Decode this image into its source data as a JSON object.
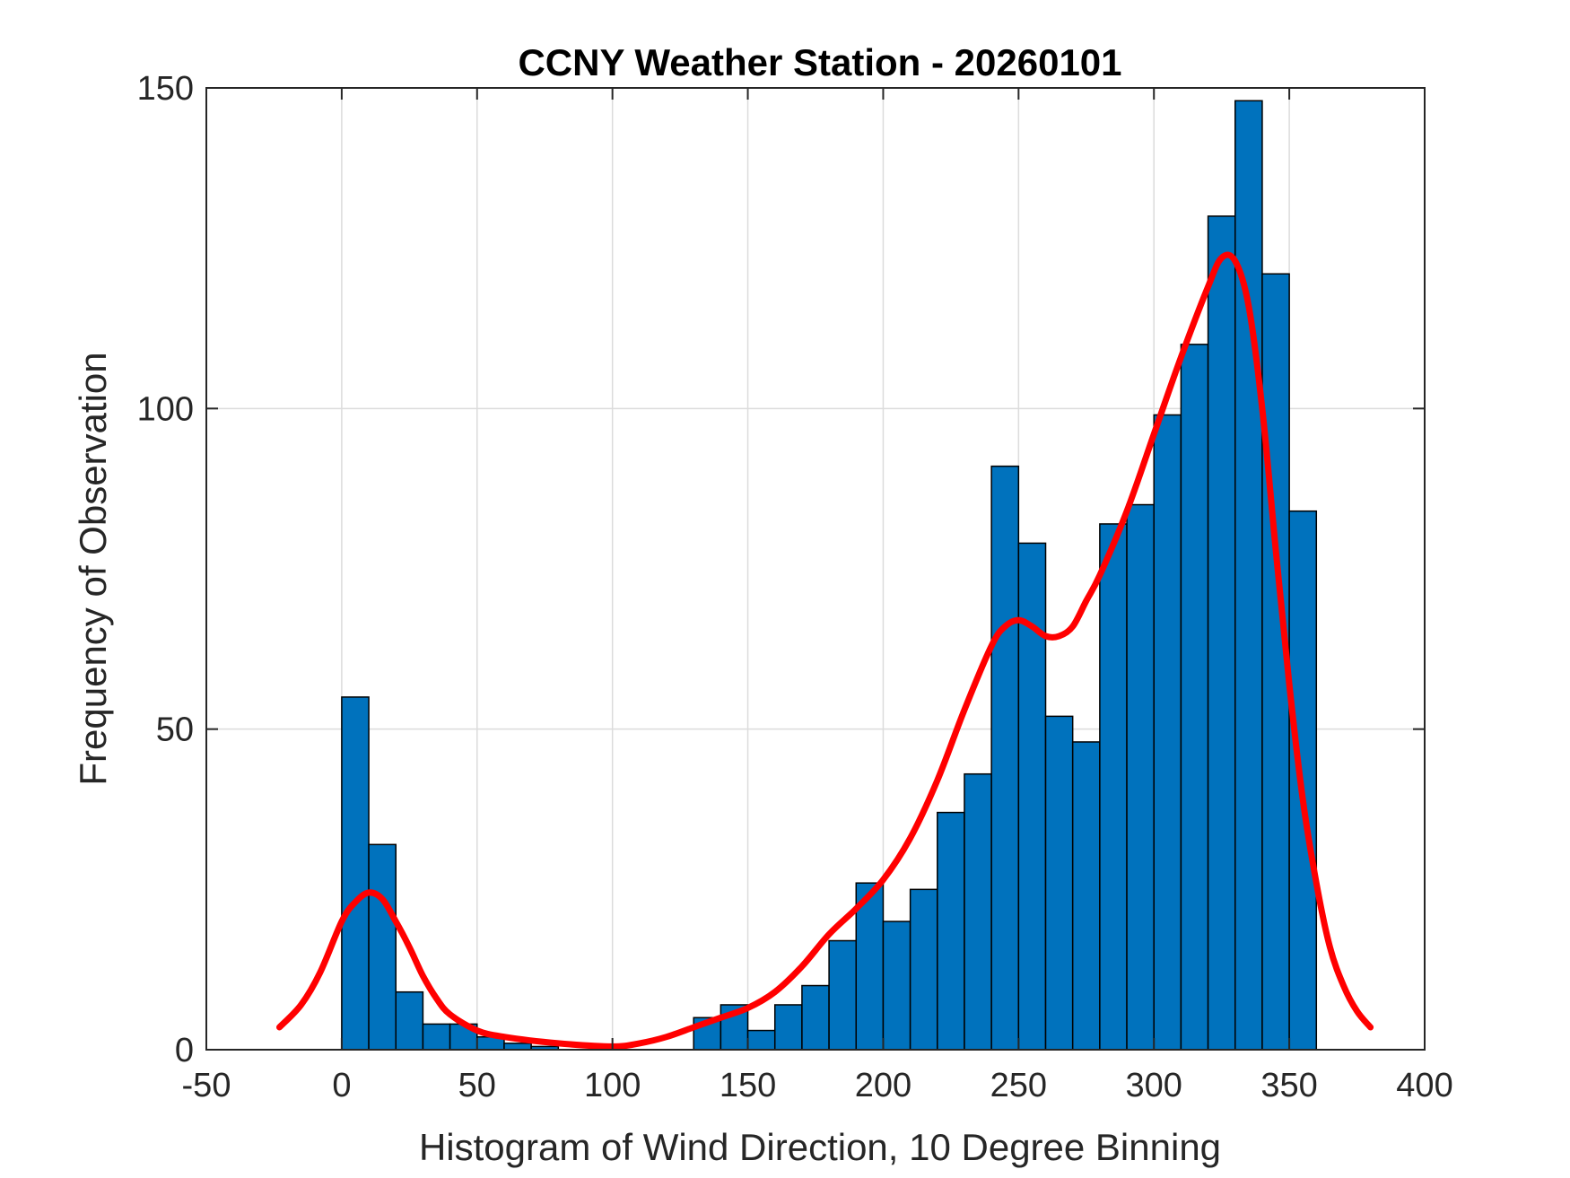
{
  "chart_data": {
    "type": "bar",
    "title": "CCNY Weather Station - 20260101",
    "xlabel": "Histogram of Wind Direction, 10 Degree Binning",
    "ylabel": "Frequency of Observation",
    "xlim": [
      -50,
      400
    ],
    "ylim": [
      0,
      150
    ],
    "xticks": [
      -50,
      0,
      50,
      100,
      150,
      200,
      250,
      300,
      350,
      400
    ],
    "yticks": [
      0,
      50,
      100,
      150
    ],
    "xtick_labels": [
      "-50",
      "0",
      "50",
      "100",
      "150",
      "200",
      "250",
      "300",
      "350",
      "400"
    ],
    "ytick_labels": [
      "0",
      "50",
      "100",
      "150"
    ],
    "grid": true,
    "bin_width": 10,
    "bin_starts": [
      0,
      10,
      20,
      30,
      40,
      50,
      60,
      70,
      80,
      90,
      100,
      110,
      120,
      130,
      140,
      150,
      160,
      170,
      180,
      190,
      200,
      210,
      220,
      230,
      240,
      250,
      260,
      270,
      280,
      290,
      300,
      310,
      320,
      330,
      340,
      350
    ],
    "values": [
      55,
      32,
      9,
      4,
      4,
      2,
      1,
      0.5,
      0,
      0,
      0,
      0,
      0,
      5,
      7,
      3,
      7,
      10,
      17,
      26,
      20,
      25,
      37,
      43,
      91,
      79,
      52,
      48,
      82,
      85,
      99,
      110,
      130,
      148,
      121,
      84
    ],
    "series": [
      {
        "type": "line",
        "x": [
          -23,
          -15,
          -8,
          0,
          5,
          10,
          15,
          20,
          25,
          30,
          35,
          40,
          50,
          60,
          80,
          100,
          110,
          120,
          130,
          140,
          150,
          160,
          170,
          180,
          190,
          200,
          210,
          220,
          230,
          240,
          245,
          250,
          255,
          260,
          265,
          270,
          275,
          280,
          290,
          300,
          310,
          320,
          325,
          330,
          335,
          340,
          345,
          350,
          355,
          360,
          365,
          370,
          375,
          380
        ],
        "y": [
          3.5,
          7,
          12,
          20,
          23,
          24.5,
          23.5,
          20,
          16,
          11.5,
          8,
          5.5,
          3,
          2,
          1,
          0.5,
          1,
          2,
          3.5,
          5,
          6.5,
          9,
          13,
          18,
          22,
          26.5,
          33,
          42,
          53,
          63,
          66,
          67,
          66,
          64.5,
          64.5,
          66,
          70,
          74,
          84,
          96,
          108,
          119,
          123.5,
          123,
          116,
          100,
          78,
          57,
          39,
          26,
          16,
          10,
          6,
          3.5
        ],
        "color": "#FF0000"
      }
    ],
    "colors": {
      "bar_fill": "#0072BD",
      "bar_edge": "#000000",
      "line": "#FF0000",
      "grid": "#DCDCDC",
      "axis": "#262626"
    }
  }
}
